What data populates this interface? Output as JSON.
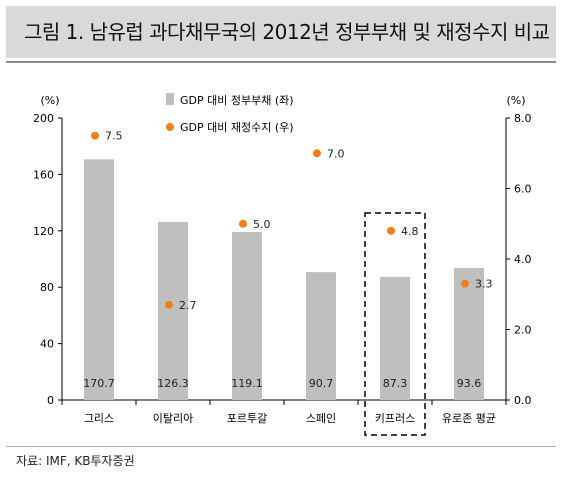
{
  "title": "그림 1. 남유럽 과다채무국의 2012년 정부부채 및 재정수지 비교",
  "source": "자료: IMF, KB투자증권",
  "chart_data": {
    "type": "bar",
    "categories": [
      "그리스",
      "이탈리아",
      "포르투갈",
      "스페인",
      "키프러스",
      "유로존 평균"
    ],
    "series": [
      {
        "name": "GDP 대비 정부부채 (좌)",
        "type": "bar",
        "axis": "left",
        "color": "#bfbfbf",
        "values": [
          170.7,
          126.3,
          119.1,
          90.7,
          87.3,
          93.6
        ],
        "labels": [
          "170.7",
          "126.3",
          "119.1",
          "90.7",
          "87.3",
          "93.6"
        ]
      },
      {
        "name": "GDP 대비 재정수지 (우)",
        "type": "scatter",
        "axis": "right",
        "color": "#f07f1d",
        "values": [
          7.5,
          2.7,
          5.0,
          7.0,
          4.8,
          3.3
        ],
        "labels": [
          "7.5",
          "2.7",
          "5.0",
          "7.0",
          "4.8",
          "3.3"
        ]
      }
    ],
    "left_axis": {
      "unit": "(%)",
      "ylim": [
        0,
        200
      ],
      "ticks": [
        0,
        40,
        80,
        120,
        160,
        200
      ],
      "tick_labels": [
        "0",
        "40",
        "80",
        "120",
        "160",
        "200"
      ]
    },
    "right_axis": {
      "unit": "(%)",
      "ylim": [
        0,
        8
      ],
      "ticks": [
        0,
        2,
        4,
        6,
        8
      ],
      "tick_labels": [
        "0.0",
        "2.0",
        "4.0",
        "6.0",
        "8.0"
      ]
    },
    "highlight_category": "키프러스",
    "grid": false,
    "legend_position": "top-center"
  }
}
